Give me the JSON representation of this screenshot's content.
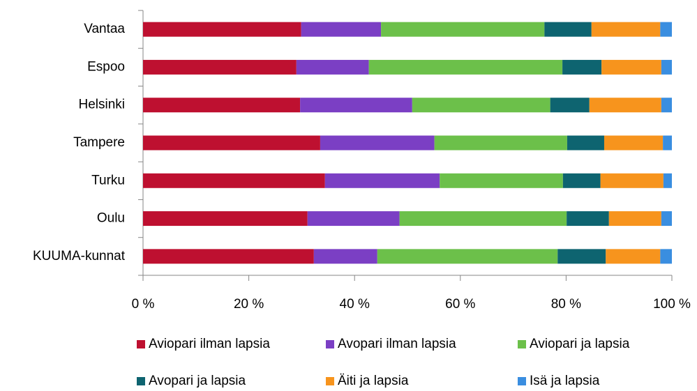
{
  "chart_data": {
    "type": "stacked-bar-horizontal",
    "categories": [
      "Vantaa",
      "Espoo",
      "Helsinki",
      "Tampere",
      "Turku",
      "Oulu",
      "KUUMA-kunnat"
    ],
    "series": [
      {
        "name": "Aviopari ilman lapsia",
        "color": "#be1030",
        "values": [
          29.9,
          29.0,
          29.7,
          33.5,
          34.4,
          31.1,
          32.3
        ]
      },
      {
        "name": "Avopari ilman lapsia",
        "color": "#7b3fc4",
        "values": [
          15.1,
          13.7,
          21.2,
          21.6,
          21.7,
          17.4,
          12.0
        ]
      },
      {
        "name": "Aviopari ja lapsia",
        "color": "#6cc04a",
        "values": [
          30.9,
          36.6,
          26.1,
          25.1,
          23.3,
          31.6,
          34.1
        ]
      },
      {
        "name": "Avopari ja lapsia",
        "color": "#0e6470",
        "values": [
          8.9,
          7.4,
          7.4,
          7.0,
          7.1,
          8.0,
          9.1
        ]
      },
      {
        "name": "Äiti ja lapsia",
        "color": "#f7941d",
        "values": [
          13.0,
          11.3,
          13.6,
          11.1,
          11.9,
          9.9,
          10.3
        ]
      },
      {
        "name": "Isä ja lapsia",
        "color": "#3a8ee0",
        "values": [
          2.2,
          2.0,
          2.0,
          1.7,
          1.6,
          2.0,
          2.2
        ]
      }
    ],
    "xlim": [
      0,
      100
    ],
    "xticks": [
      {
        "value": 0,
        "label": "0 %"
      },
      {
        "value": 20,
        "label": "20 %"
      },
      {
        "value": 40,
        "label": "40 %"
      },
      {
        "value": 60,
        "label": "60 %"
      },
      {
        "value": 80,
        "label": "80 %"
      },
      {
        "value": 100,
        "label": "100 %"
      }
    ],
    "grid": false
  }
}
